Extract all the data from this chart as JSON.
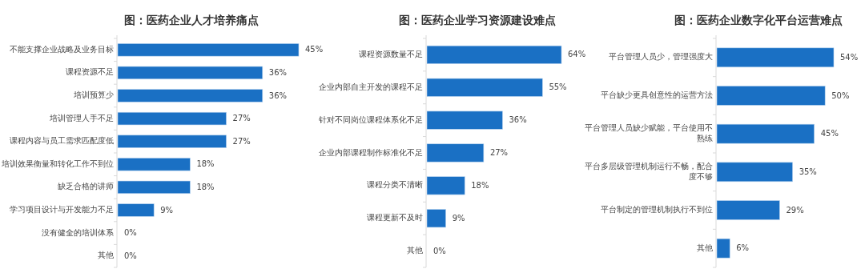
{
  "chart_data": [
    {
      "type": "bar",
      "orientation": "horizontal",
      "title": "图：医药企业人才培养痛点",
      "categories": [
        "不能支撑企业战略及业务目标",
        "课程资源不足",
        "培训预算少",
        "培训管理人手不足",
        "课程内容与员工需求匹配度低",
        "培训效果衡量和转化工作不到位",
        "缺乏合格的讲师",
        "学习项目设计与开发能力不足",
        "没有健全的培训体系",
        "其他"
      ],
      "values": [
        45,
        36,
        36,
        27,
        27,
        18,
        18,
        9,
        0,
        0
      ],
      "value_labels": [
        "45%",
        "36%",
        "36%",
        "27%",
        "27%",
        "18%",
        "18%",
        "9%",
        "0%",
        "0%"
      ],
      "color": "#1a70c4"
    },
    {
      "type": "bar",
      "orientation": "horizontal",
      "title": "图：医药企业学习资源建设难点",
      "categories": [
        "课程资源数量不足",
        "企业内部自主开发的课程不足",
        "针对不同岗位课程体系化不足",
        "企业内部课程制作标准化不足",
        "课程分类不清晰",
        "课程更新不及时",
        "其他"
      ],
      "values": [
        64,
        55,
        36,
        27,
        18,
        9,
        0
      ],
      "value_labels": [
        "64%",
        "55%",
        "36%",
        "27%",
        "18%",
        "9%",
        "0%"
      ],
      "color": "#1a70c4"
    },
    {
      "type": "bar",
      "orientation": "horizontal",
      "title": "图：医药企业数字化平台运营难点",
      "categories": [
        "平台管理人员少，管理强度大",
        "平台缺少更具创意性的运营方法",
        "平台管理人员缺少赋能，平台使用不熟练",
        "平台多层级管理机制运行不畅，配合度不够",
        "平台制定的管理机制执行不到位",
        "其他"
      ],
      "values": [
        54,
        50,
        45,
        35,
        29,
        6
      ],
      "value_labels": [
        "54%",
        "50%",
        "45%",
        "35%",
        "29%",
        "6%"
      ],
      "color": "#1a70c4"
    }
  ]
}
